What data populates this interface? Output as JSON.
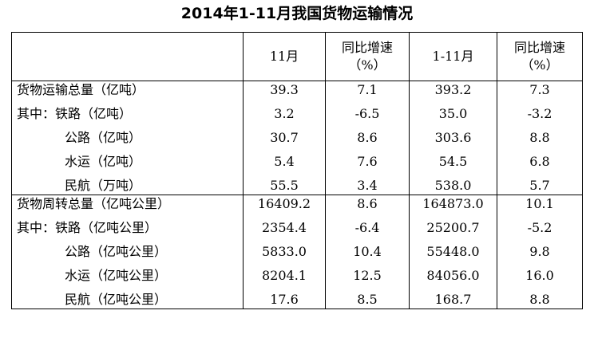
{
  "title": "2014年1-11月我国货物运输情况",
  "header": {
    "col1": "11月",
    "col2_line1": "同比增速",
    "col2_line2": "（%）",
    "col3": "1-11月",
    "col4_line1": "同比增速",
    "col4_line2": "（%）"
  },
  "volume": {
    "labels": [
      "货物运输总量（亿吨）",
      "其中：铁路（亿吨）",
      "公路（亿吨）",
      "水运（亿吨）",
      "民航（万吨）"
    ],
    "nov": [
      "39.3",
      "3.2",
      "30.7",
      "5.4",
      "55.5"
    ],
    "nov_yoy": [
      "7.1",
      "-6.5",
      "8.6",
      "7.6",
      "3.4"
    ],
    "ytd": [
      "393.2",
      "35.0",
      "303.6",
      "54.5",
      "538.0"
    ],
    "ytd_yoy": [
      "7.3",
      "-3.2",
      "8.8",
      "6.8",
      "5.7"
    ]
  },
  "turnover": {
    "labels": [
      "货物周转总量（亿吨公里）",
      "其中：铁路（亿吨公里）",
      "公路（亿吨公里）",
      "水运（亿吨公里）",
      "民航（亿吨公里）"
    ],
    "nov": [
      "16409.2",
      "2354.4",
      "5833.0",
      "8204.1",
      "17.6"
    ],
    "nov_yoy": [
      "8.6",
      "-6.4",
      "10.4",
      "12.5",
      "8.5"
    ],
    "ytd": [
      "164873.0",
      "25200.7",
      "55448.0",
      "84056.0",
      "168.7"
    ],
    "ytd_yoy": [
      "10.1",
      "-5.2",
      "9.8",
      "16.0",
      "8.8"
    ]
  }
}
